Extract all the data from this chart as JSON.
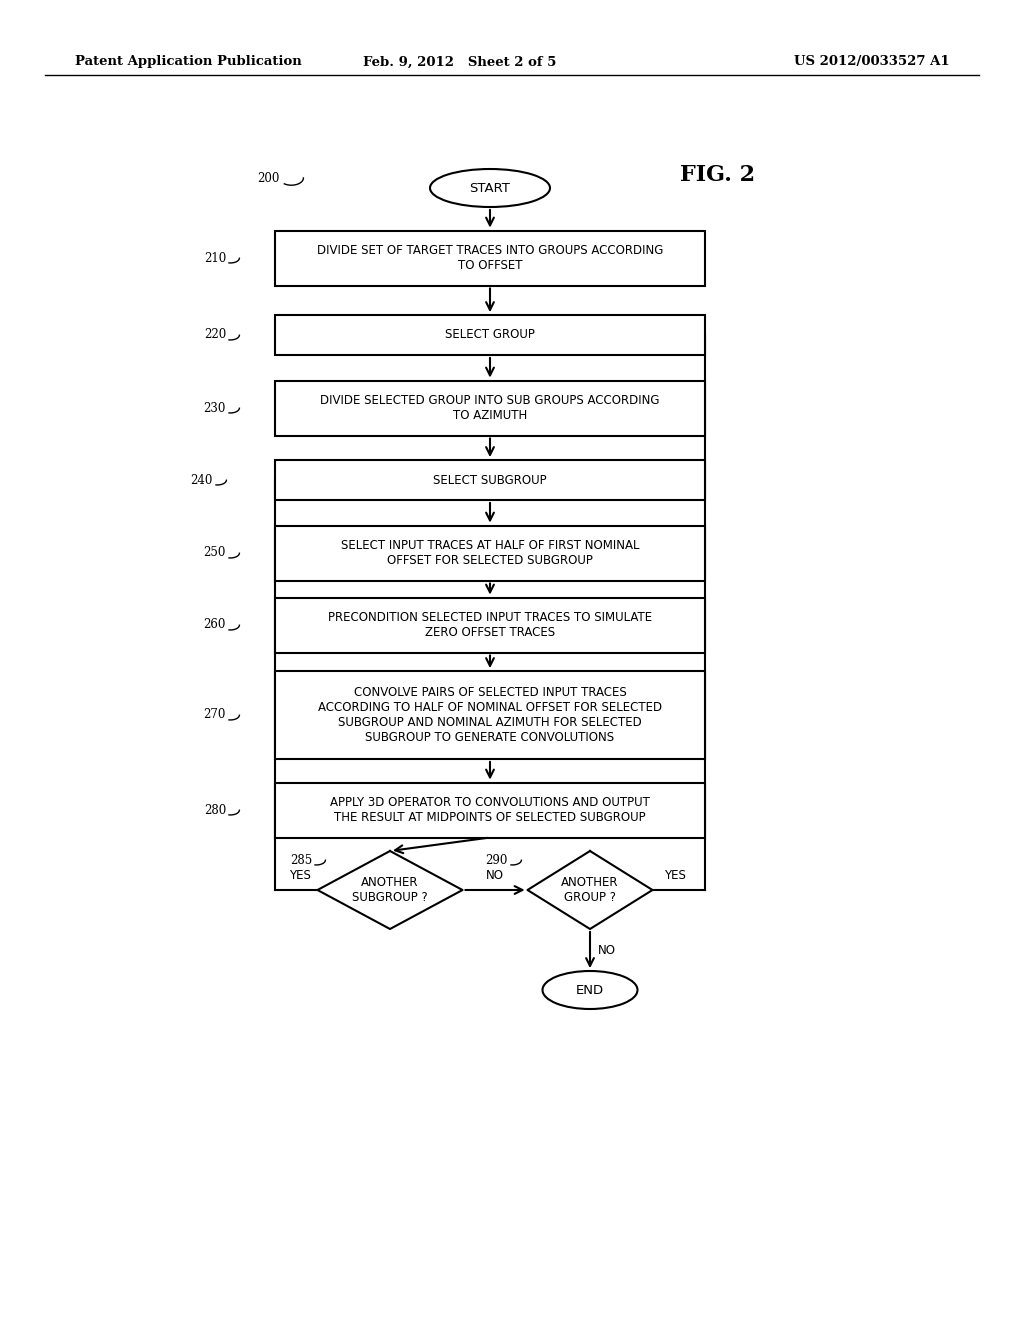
{
  "header_left": "Patent Application Publication",
  "header_center": "Feb. 9, 2012   Sheet 2 of 5",
  "header_right": "US 2012/0033527 A1",
  "fig_label": "FIG. 2",
  "bg_color": "#ffffff",
  "line_color": "#000000",
  "text_color": "#000000",
  "start_text": "START",
  "end_text": "END",
  "label_200": "200",
  "label_210": "210",
  "label_220": "220",
  "label_230": "230",
  "label_240": "240",
  "label_250": "250",
  "label_260": "260",
  "label_270": "270",
  "label_280": "280",
  "label_285": "285",
  "label_290": "290",
  "text_210": "DIVIDE SET OF TARGET TRACES INTO GROUPS ACCORDING\nTO OFFSET",
  "text_220": "SELECT GROUP",
  "text_230": "DIVIDE SELECTED GROUP INTO SUB GROUPS ACCORDING\nTO AZIMUTH",
  "text_240": "SELECT SUBGROUP",
  "text_250": "SELECT INPUT TRACES AT HALF OF FIRST NOMINAL\nOFFSET FOR SELECTED SUBGROUP",
  "text_260": "PRECONDITION SELECTED INPUT TRACES TO SIMULATE\nZERO OFFSET TRACES",
  "text_270": "CONVOLVE PAIRS OF SELECTED INPUT TRACES\nACCORDING TO HALF OF NOMINAL OFFSET FOR SELECTED\nSUBGROUP AND NOMINAL AZIMUTH FOR SELECTED\nSUBGROUP TO GENERATE CONVOLUTIONS",
  "text_280": "APPLY 3D OPERATOR TO CONVOLUTIONS AND OUTPUT\nTHE RESULT AT MIDPOINTS OF SELECTED SUBGROUP",
  "text_285": "ANOTHER\nSUBGROUP ?",
  "text_290": "ANOTHER\nGROUP ?",
  "yes_text": "YES",
  "no_text": "NO"
}
